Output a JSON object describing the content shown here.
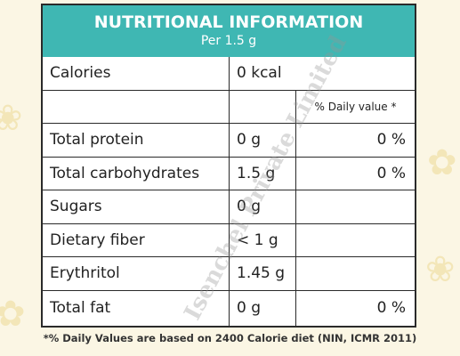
{
  "header": {
    "title": "NUTRITIONAL INFORMATION",
    "subtitle": "Per 1.5 g"
  },
  "table": {
    "calories": [
      "Calories",
      "0 kcal"
    ],
    "daily_value_heading": "% Daily value *",
    "rows": [
      [
        "Total protein",
        "0 g",
        "0 %"
      ],
      [
        "Total carbohydrates",
        "1.5 g",
        "0 %"
      ],
      [
        "Sugars",
        "0 g"
      ],
      [
        "Dietary fiber",
        "< 1 g"
      ],
      [
        "Erythritol",
        "1.45 g"
      ],
      [
        "Total fat",
        "0 g",
        "0 %"
      ]
    ]
  },
  "footnote": "*% Daily Values are based on 2400 Calorie diet (NIN, ICMR 2011)",
  "watermark": "Isenchel Private Limited"
}
